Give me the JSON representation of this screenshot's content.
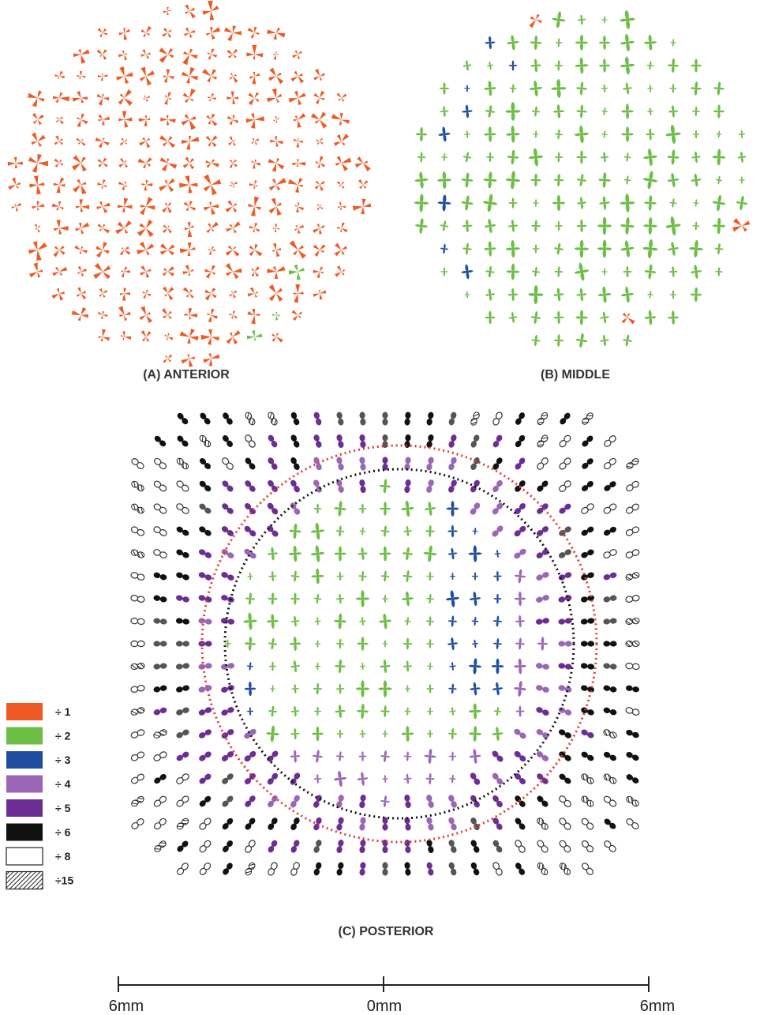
{
  "panels": [
    {
      "id": "anterior",
      "label": "(A) ANTERIOR"
    },
    {
      "id": "middle",
      "label": "(B) MIDDLE"
    },
    {
      "id": "posterior",
      "label": "(C) POSTERIOR"
    }
  ],
  "legend": [
    {
      "label": "÷ 1",
      "color": "#ef5a24",
      "style": "solid"
    },
    {
      "label": "÷ 2",
      "color": "#6cbe45",
      "style": "solid"
    },
    {
      "label": "÷ 3",
      "color": "#1f4ea1",
      "style": "solid"
    },
    {
      "label": "÷ 4",
      "color": "#9b66b8",
      "style": "solid"
    },
    {
      "label": "÷ 5",
      "color": "#6d2e93",
      "style": "solid"
    },
    {
      "label": "÷ 6",
      "color": "#111111",
      "style": "solid"
    },
    {
      "label": "÷ 8",
      "color": "#ffffff",
      "style": "outline"
    },
    {
      "label": "÷15",
      "color": "#555555",
      "style": "hatched"
    }
  ],
  "scale_bar": {
    "left_label": "6mm",
    "center_label": "0mm",
    "right_label": "6mm"
  },
  "colors": {
    "orange": "#ef5a24",
    "green": "#6cbe45",
    "blue": "#1f4ea1",
    "lavender": "#9b66b8",
    "purple": "#6d2e93",
    "black": "#111111",
    "ring_red": "#e53935",
    "ring_black": "#111111"
  }
}
